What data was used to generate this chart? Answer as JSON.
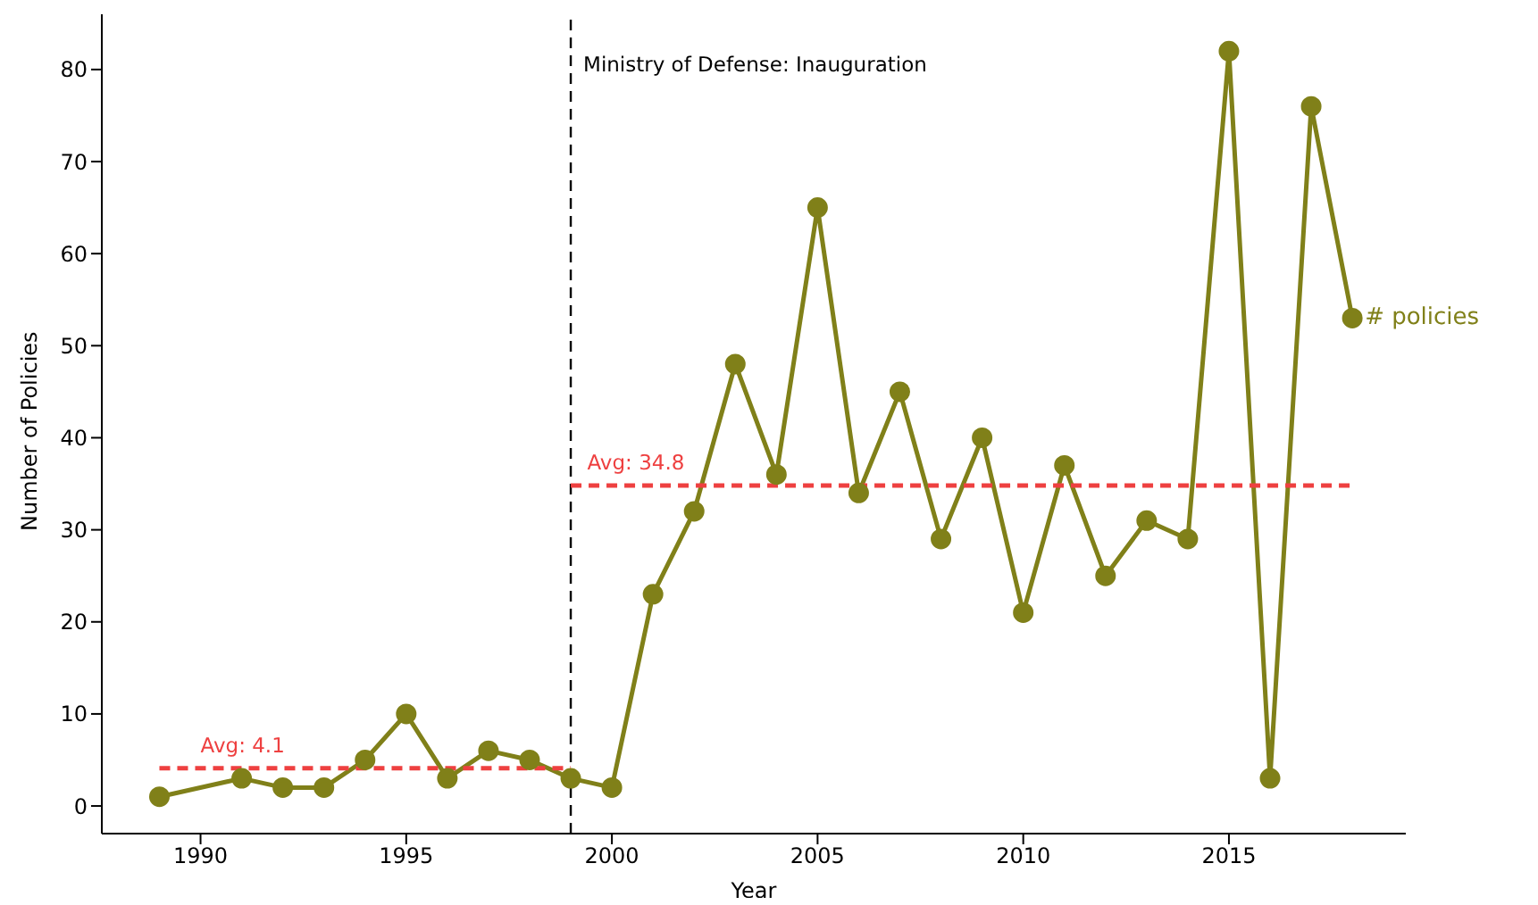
{
  "chart_data": {
    "type": "line",
    "xlabel": "Year",
    "ylabel": "Number of Policies",
    "x": [
      1989,
      1991,
      1992,
      1993,
      1994,
      1995,
      1996,
      1997,
      1998,
      1999,
      2000,
      2001,
      2002,
      2003,
      2004,
      2005,
      2006,
      2007,
      2008,
      2009,
      2010,
      2011,
      2012,
      2013,
      2014,
      2015,
      2016,
      2017,
      2018
    ],
    "series": [
      {
        "name": "# policies",
        "color": "#808019",
        "marker": "circle",
        "values": [
          1,
          3,
          2,
          2,
          5,
          10,
          3,
          6,
          5,
          3,
          2,
          23,
          32,
          48,
          36,
          65,
          34,
          45,
          29,
          40,
          21,
          37,
          25,
          31,
          29,
          82,
          3,
          76,
          53
        ]
      },
      {
        "color": "#ee4040",
        "marker": "none",
        "line_style": "dashed",
        "x": [
          1989,
          1999
        ],
        "values": [
          4.1,
          4.1
        ]
      },
      {
        "color": "#ee4040",
        "marker": "none",
        "line_style": "dashed",
        "x": [
          1999,
          2018
        ],
        "values": [
          34.8,
          34.8
        ]
      }
    ],
    "ref_lines": [
      {
        "axis": "x",
        "value": 1999,
        "label": "Ministry of Defense: Inauguration",
        "color": "#000000",
        "line_style": "dashed"
      }
    ],
    "annotations": [
      {
        "text": "Avg: 4.1",
        "x": 1990,
        "y": 4.1
      },
      {
        "text": "Avg: 34.8",
        "x": 1999.4,
        "y": 34.8
      }
    ],
    "xlim": [
      1987.6,
      2019.3
    ],
    "xticks": [
      1990,
      1995,
      2000,
      2005,
      2010,
      2015
    ],
    "ylim": [
      -3,
      86
    ],
    "yticks": [
      0,
      10,
      20,
      30,
      40,
      50,
      60,
      70,
      80
    ],
    "grid": false
  }
}
